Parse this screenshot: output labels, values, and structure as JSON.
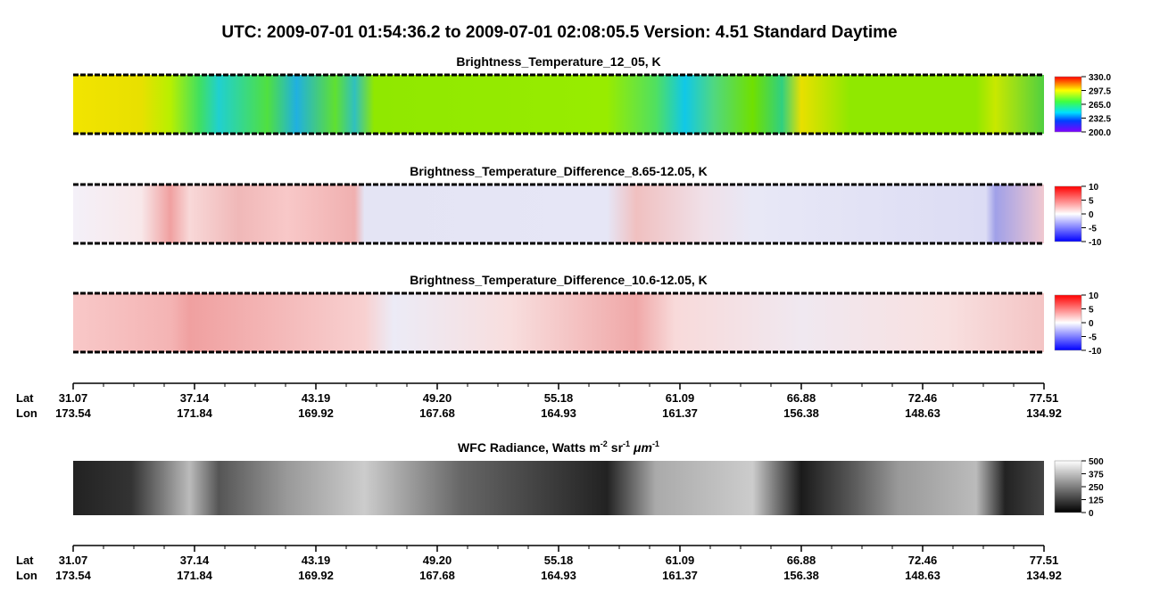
{
  "title": "UTC:  2009-07-01   01:54:36.2  to  2009-07-01   02:08:05.5    Version: 4.51  Standard Daytime",
  "panels": [
    {
      "title": "Brightness_Temperature_12_05, K",
      "colorbar": [
        "330.0",
        "297.5",
        "265.0",
        "232.5",
        "200.0"
      ]
    },
    {
      "title": "Brightness_Temperature_Difference_8.65-12.05, K",
      "colorbar": [
        "10",
        "5",
        "0",
        "-5",
        "-10"
      ]
    },
    {
      "title": "Brightness_Temperature_Difference_10.6-12.05, K",
      "colorbar": [
        "10",
        "5",
        "0",
        "-5",
        "-10"
      ]
    }
  ],
  "wfc": {
    "title_parts": [
      "WFC Radiance, Watts m",
      "-2",
      "sr",
      "-1",
      "μm",
      "-1"
    ],
    "colorbar": [
      "500",
      "375",
      "250",
      "125",
      "0"
    ]
  },
  "axis": {
    "lat_label": "Lat",
    "lon_label": "Lon",
    "lat": [
      "31.07",
      "37.14",
      "43.19",
      "49.20",
      "55.18",
      "61.09",
      "66.88",
      "72.46",
      "77.51"
    ],
    "lon": [
      "173.54",
      "171.84",
      "169.92",
      "167.68",
      "164.93",
      "161.37",
      "156.38",
      "148.63",
      "134.92"
    ]
  }
}
